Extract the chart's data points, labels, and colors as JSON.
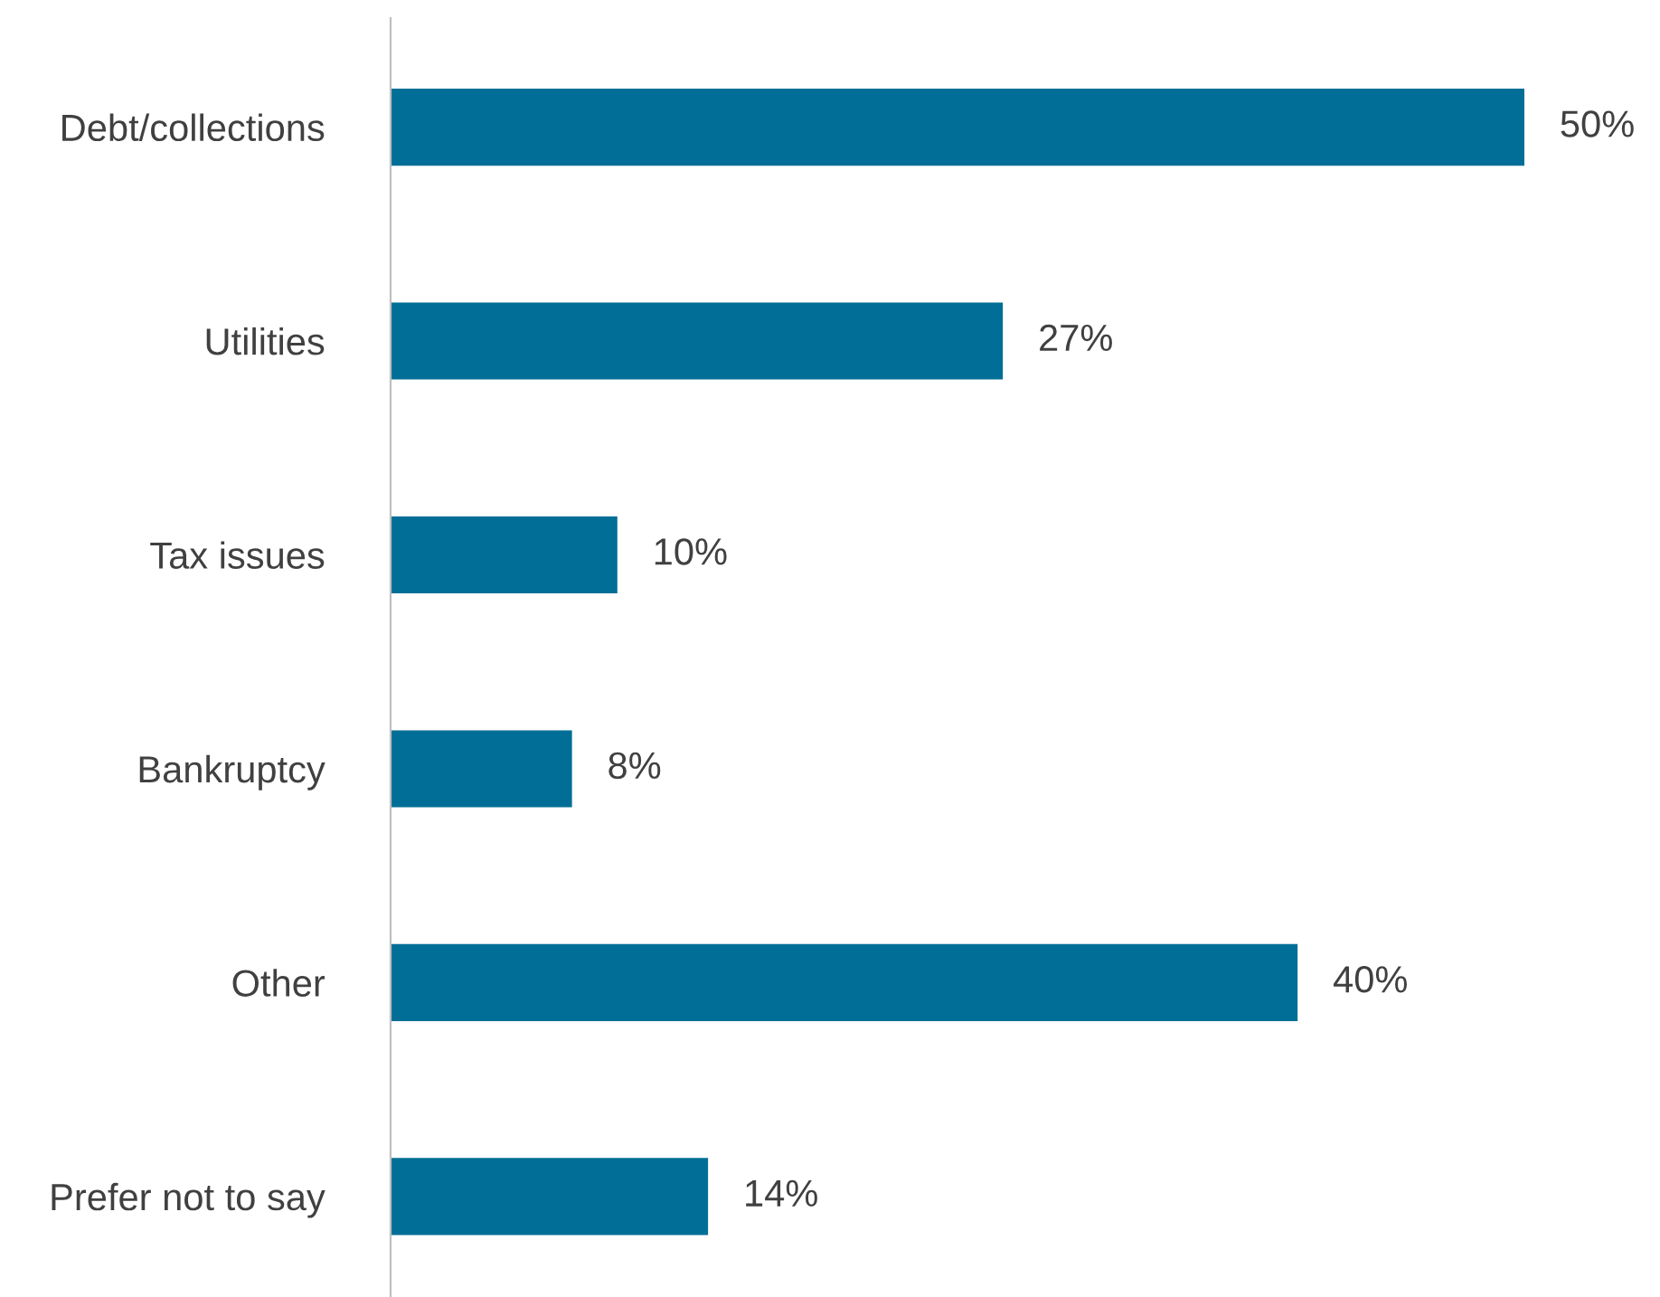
{
  "chart_data": {
    "type": "bar",
    "orientation": "horizontal",
    "categories": [
      "Debt/collections",
      "Utilities",
      "Tax issues",
      "Bankruptcy",
      "Other",
      "Prefer not to say"
    ],
    "values": [
      50,
      27,
      10,
      8,
      40,
      14
    ],
    "value_labels": [
      "50%",
      "27%",
      "10%",
      "8%",
      "40%",
      "14%"
    ],
    "color": "#006e96"
  }
}
